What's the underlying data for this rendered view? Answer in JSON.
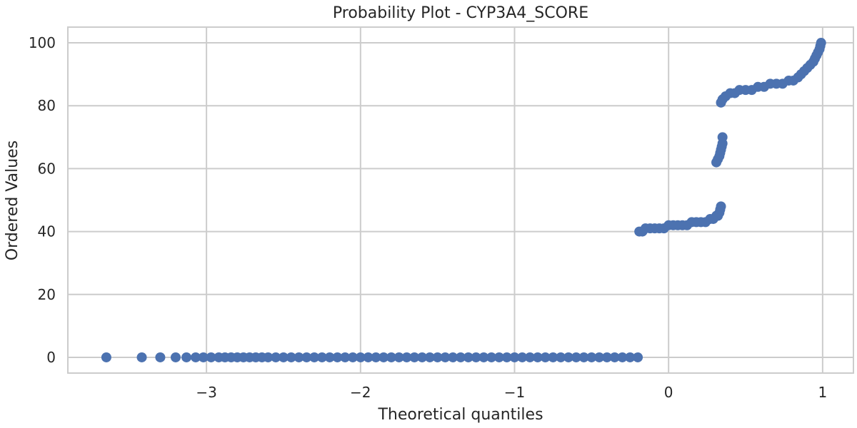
{
  "chart_data": {
    "type": "scatter",
    "title": "Probability Plot - CYP3A4_SCORE",
    "xlabel": "Theoretical quantiles",
    "ylabel": "Ordered Values",
    "xlim": [
      -3.9,
      1.2
    ],
    "ylim": [
      -5,
      105
    ],
    "xticks": [
      -3,
      -2,
      -1,
      0,
      1
    ],
    "xtick_labels": [
      "−3",
      "−2",
      "−1",
      "0",
      "1"
    ],
    "yticks": [
      0,
      20,
      40,
      60,
      80,
      100
    ],
    "ytick_labels": [
      "0",
      "20",
      "40",
      "60",
      "80",
      "100"
    ],
    "grid": true,
    "legend": "none",
    "colors": {
      "points": "#4c72b0",
      "grid": "#cccccc",
      "spine": "#cccccc",
      "text": "#262626"
    },
    "points": [
      [
        -3.65,
        0
      ],
      [
        -3.42,
        0
      ],
      [
        -3.3,
        0
      ],
      [
        -3.2,
        0
      ],
      [
        -3.13,
        0
      ],
      [
        -3.07,
        0
      ],
      [
        -3.02,
        0
      ],
      [
        -2.97,
        0
      ],
      [
        -2.92,
        0
      ],
      [
        -2.88,
        0
      ],
      [
        -2.84,
        0
      ],
      [
        -2.8,
        0
      ],
      [
        -2.76,
        0
      ],
      [
        -2.72,
        0
      ],
      [
        -2.68,
        0
      ],
      [
        -2.64,
        0
      ],
      [
        -2.6,
        0
      ],
      [
        -2.55,
        0
      ],
      [
        -2.5,
        0
      ],
      [
        -2.45,
        0
      ],
      [
        -2.4,
        0
      ],
      [
        -2.35,
        0
      ],
      [
        -2.3,
        0
      ],
      [
        -2.25,
        0
      ],
      [
        -2.2,
        0
      ],
      [
        -2.15,
        0
      ],
      [
        -2.1,
        0
      ],
      [
        -2.05,
        0
      ],
      [
        -2.0,
        0
      ],
      [
        -1.95,
        0
      ],
      [
        -1.9,
        0
      ],
      [
        -1.85,
        0
      ],
      [
        -1.8,
        0
      ],
      [
        -1.75,
        0
      ],
      [
        -1.7,
        0
      ],
      [
        -1.65,
        0
      ],
      [
        -1.6,
        0
      ],
      [
        -1.55,
        0
      ],
      [
        -1.5,
        0
      ],
      [
        -1.45,
        0
      ],
      [
        -1.4,
        0
      ],
      [
        -1.35,
        0
      ],
      [
        -1.3,
        0
      ],
      [
        -1.25,
        0
      ],
      [
        -1.2,
        0
      ],
      [
        -1.15,
        0
      ],
      [
        -1.1,
        0
      ],
      [
        -1.05,
        0
      ],
      [
        -1.0,
        0
      ],
      [
        -0.95,
        0
      ],
      [
        -0.9,
        0
      ],
      [
        -0.85,
        0
      ],
      [
        -0.8,
        0
      ],
      [
        -0.75,
        0
      ],
      [
        -0.7,
        0
      ],
      [
        -0.65,
        0
      ],
      [
        -0.6,
        0
      ],
      [
        -0.55,
        0
      ],
      [
        -0.5,
        0
      ],
      [
        -0.45,
        0
      ],
      [
        -0.4,
        0
      ],
      [
        -0.35,
        0
      ],
      [
        -0.3,
        0
      ],
      [
        -0.25,
        0
      ],
      [
        -0.2,
        0
      ],
      [
        -0.19,
        40
      ],
      [
        -0.17,
        40
      ],
      [
        -0.15,
        41
      ],
      [
        -0.12,
        41
      ],
      [
        -0.09,
        41
      ],
      [
        -0.06,
        41
      ],
      [
        -0.03,
        41
      ],
      [
        0.0,
        42
      ],
      [
        0.03,
        42
      ],
      [
        0.06,
        42
      ],
      [
        0.09,
        42
      ],
      [
        0.12,
        42
      ],
      [
        0.15,
        43
      ],
      [
        0.18,
        43
      ],
      [
        0.21,
        43
      ],
      [
        0.24,
        43
      ],
      [
        0.27,
        44
      ],
      [
        0.29,
        44
      ],
      [
        0.31,
        45
      ],
      [
        0.32,
        45
      ],
      [
        0.33,
        46
      ],
      [
        0.335,
        47
      ],
      [
        0.34,
        48
      ],
      [
        0.31,
        62
      ],
      [
        0.32,
        63
      ],
      [
        0.33,
        64
      ],
      [
        0.335,
        65
      ],
      [
        0.34,
        66
      ],
      [
        0.345,
        67
      ],
      [
        0.35,
        68
      ],
      [
        0.35,
        70
      ],
      [
        0.34,
        81
      ],
      [
        0.35,
        82
      ],
      [
        0.37,
        83
      ],
      [
        0.4,
        84
      ],
      [
        0.43,
        84
      ],
      [
        0.46,
        85
      ],
      [
        0.5,
        85
      ],
      [
        0.54,
        85
      ],
      [
        0.58,
        86
      ],
      [
        0.62,
        86
      ],
      [
        0.66,
        87
      ],
      [
        0.7,
        87
      ],
      [
        0.74,
        87
      ],
      [
        0.78,
        88
      ],
      [
        0.81,
        88
      ],
      [
        0.84,
        89
      ],
      [
        0.86,
        90
      ],
      [
        0.88,
        91
      ],
      [
        0.9,
        92
      ],
      [
        0.92,
        93
      ],
      [
        0.94,
        94
      ],
      [
        0.95,
        95
      ],
      [
        0.96,
        96
      ],
      [
        0.97,
        97
      ],
      [
        0.98,
        98
      ],
      [
        0.985,
        99
      ],
      [
        0.99,
        100
      ]
    ]
  }
}
